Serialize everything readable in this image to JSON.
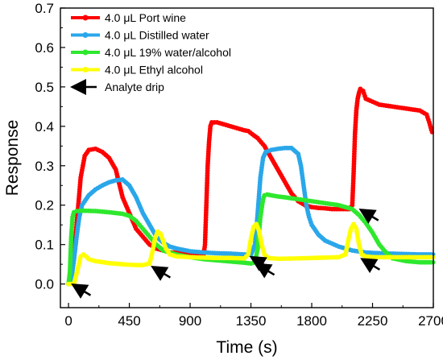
{
  "chart_data": {
    "type": "line",
    "xlabel": "Time (s)",
    "ylabel": "Response",
    "xlim": [
      -60,
      2700
    ],
    "ylim": [
      -0.06,
      0.7
    ],
    "xticks": [
      0,
      450,
      900,
      1350,
      1800,
      2250,
      2700
    ],
    "yticks": [
      0.0,
      0.1,
      0.2,
      0.3,
      0.4,
      0.5,
      0.6,
      0.7
    ],
    "xtick_labels": [
      "0",
      "450",
      "900",
      "1350",
      "1800",
      "2250",
      "2700"
    ],
    "ytick_labels": [
      "0.0",
      "0.1",
      "0.2",
      "0.3",
      "0.4",
      "0.5",
      "0.6",
      "0.7"
    ],
    "grid": false,
    "legend_position": "top-left",
    "series": [
      {
        "name": "4.0 μL Port wine",
        "color": "#ff0000",
        "x": [
          0,
          30,
          60,
          90,
          120,
          150,
          200,
          250,
          300,
          350,
          400,
          450,
          500,
          550,
          600,
          650,
          700,
          750,
          800,
          850,
          900,
          950,
          1000,
          1010,
          1020,
          1030,
          1040,
          1050,
          1060,
          1100,
          1150,
          1200,
          1250,
          1300,
          1330,
          1360,
          1400,
          1450,
          1500,
          1550,
          1600,
          1650,
          1700,
          1750,
          1800,
          1850,
          1900,
          1950,
          2000,
          2050,
          2080,
          2100,
          2110,
          2120,
          2130,
          2140,
          2150,
          2160,
          2180,
          2200,
          2300,
          2400,
          2500,
          2600,
          2650,
          2670,
          2690
        ],
        "y": [
          0.0,
          0.05,
          0.15,
          0.27,
          0.325,
          0.34,
          0.343,
          0.335,
          0.32,
          0.29,
          0.22,
          0.18,
          0.14,
          0.12,
          0.1,
          0.09,
          0.085,
          0.08,
          0.08,
          0.08,
          0.078,
          0.076,
          0.075,
          0.1,
          0.2,
          0.3,
          0.36,
          0.4,
          0.41,
          0.41,
          0.405,
          0.4,
          0.395,
          0.39,
          0.388,
          0.38,
          0.37,
          0.35,
          0.32,
          0.29,
          0.26,
          0.23,
          0.21,
          0.2,
          0.195,
          0.193,
          0.192,
          0.19,
          0.19,
          0.19,
          0.19,
          0.2,
          0.28,
          0.38,
          0.44,
          0.47,
          0.485,
          0.495,
          0.49,
          0.47,
          0.455,
          0.45,
          0.445,
          0.44,
          0.43,
          0.41,
          0.385
        ]
      },
      {
        "name": "4.0 μL Distilled water",
        "color": "#2aa7ea",
        "x": [
          0,
          20,
          40,
          60,
          80,
          100,
          150,
          200,
          250,
          300,
          350,
          400,
          450,
          500,
          550,
          600,
          650,
          700,
          750,
          800,
          900,
          1000,
          1100,
          1200,
          1300,
          1350,
          1380,
          1400,
          1420,
          1440,
          1460,
          1500,
          1550,
          1600,
          1650,
          1700,
          1720,
          1740,
          1760,
          1780,
          1800,
          1850,
          1900,
          2000,
          2100,
          2200,
          2300,
          2400,
          2500,
          2600,
          2700
        ],
        "y": [
          0.0,
          0.01,
          0.06,
          0.12,
          0.17,
          0.2,
          0.225,
          0.24,
          0.25,
          0.258,
          0.263,
          0.265,
          0.25,
          0.22,
          0.18,
          0.15,
          0.12,
          0.105,
          0.095,
          0.09,
          0.083,
          0.08,
          0.078,
          0.077,
          0.075,
          0.074,
          0.1,
          0.18,
          0.27,
          0.32,
          0.335,
          0.34,
          0.343,
          0.345,
          0.345,
          0.33,
          0.3,
          0.25,
          0.2,
          0.17,
          0.15,
          0.125,
          0.11,
          0.095,
          0.085,
          0.08,
          0.078,
          0.077,
          0.076,
          0.075,
          0.075
        ]
      },
      {
        "name": "4.0 μL 19% water/alcohol",
        "color": "#2ee82e",
        "x": [
          0,
          10,
          20,
          30,
          40,
          60,
          100,
          200,
          300,
          400,
          450,
          500,
          550,
          600,
          650,
          700,
          800,
          900,
          1000,
          1100,
          1200,
          1300,
          1350,
          1380,
          1400,
          1420,
          1440,
          1450,
          1470,
          1500,
          1550,
          1600,
          1700,
          1800,
          1900,
          2000,
          2100,
          2150,
          2200,
          2250,
          2300,
          2350,
          2400,
          2500,
          2600,
          2700
        ],
        "y": [
          0.0,
          0.03,
          0.12,
          0.17,
          0.182,
          0.185,
          0.186,
          0.185,
          0.182,
          0.178,
          0.173,
          0.16,
          0.14,
          0.12,
          0.1,
          0.085,
          0.075,
          0.068,
          0.063,
          0.06,
          0.057,
          0.054,
          0.052,
          0.055,
          0.09,
          0.17,
          0.215,
          0.225,
          0.227,
          0.225,
          0.222,
          0.22,
          0.215,
          0.21,
          0.205,
          0.2,
          0.19,
          0.175,
          0.155,
          0.13,
          0.1,
          0.08,
          0.065,
          0.058,
          0.055,
          0.055
        ]
      },
      {
        "name": "4.0 μL Ethyl alcohol",
        "color": "#ffff00",
        "x": [
          0,
          40,
          70,
          90,
          110,
          130,
          150,
          200,
          300,
          400,
          500,
          550,
          600,
          620,
          640,
          660,
          680,
          700,
          720,
          750,
          800,
          900,
          1000,
          1100,
          1200,
          1300,
          1330,
          1350,
          1370,
          1390,
          1410,
          1430,
          1450,
          1480,
          1550,
          1700,
          1800,
          1900,
          2000,
          2050,
          2070,
          2090,
          2110,
          2130,
          2150,
          2170,
          2200,
          2250,
          2300,
          2400,
          2500,
          2600,
          2700
        ],
        "y": [
          0.0,
          0.0,
          0.04,
          0.07,
          0.075,
          0.07,
          0.063,
          0.058,
          0.053,
          0.05,
          0.048,
          0.048,
          0.052,
          0.08,
          0.115,
          0.133,
          0.128,
          0.11,
          0.09,
          0.075,
          0.07,
          0.068,
          0.067,
          0.066,
          0.066,
          0.065,
          0.075,
          0.115,
          0.145,
          0.152,
          0.135,
          0.1,
          0.075,
          0.066,
          0.064,
          0.065,
          0.066,
          0.067,
          0.068,
          0.075,
          0.11,
          0.14,
          0.152,
          0.14,
          0.1,
          0.075,
          0.07,
          0.068,
          0.068,
          0.068,
          0.068,
          0.068,
          0.068
        ]
      }
    ],
    "analyte_drip": {
      "name": "Analyte drip",
      "arrows": [
        {
          "x": 20,
          "y": 0.0,
          "dir": "down-right"
        },
        {
          "x": 610,
          "y": 0.045,
          "dir": "down-right"
        },
        {
          "x": 1340,
          "y": 0.07,
          "dir": "down-right"
        },
        {
          "x": 1380,
          "y": 0.052,
          "dir": "down-right"
        },
        {
          "x": 2150,
          "y": 0.19,
          "dir": "down-right"
        },
        {
          "x": 2160,
          "y": 0.065,
          "dir": "down-right"
        }
      ]
    }
  }
}
